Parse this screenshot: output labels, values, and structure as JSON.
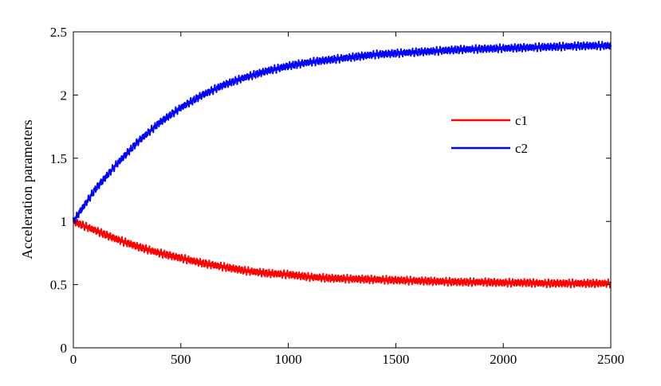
{
  "chart_data": {
    "type": "line",
    "ylabel": "Acceleration parameters",
    "xlim": [
      0,
      2500
    ],
    "ylim": [
      0,
      2.5
    ],
    "xticks": [
      0,
      500,
      1000,
      1500,
      2000,
      2500
    ],
    "yticks": [
      0,
      0.5,
      1,
      1.5,
      2,
      2.5
    ],
    "xtick_labels": [
      "0",
      "500",
      "1000",
      "1500",
      "2000",
      "2500"
    ],
    "ytick_labels": [
      "0",
      "0.5",
      "1",
      "1.5",
      "2",
      "2.5"
    ],
    "grid": false,
    "legend_position": "right-center",
    "x": [
      0,
      100,
      200,
      300,
      400,
      500,
      600,
      700,
      800,
      900,
      1000,
      1100,
      1200,
      1300,
      1400,
      1500,
      1600,
      1700,
      1800,
      1900,
      2000,
      2100,
      2200,
      2300,
      2400,
      2500
    ],
    "series": [
      {
        "name": "c1",
        "color": "#ff0000",
        "values": [
          1.0,
          0.93,
          0.86,
          0.8,
          0.75,
          0.71,
          0.67,
          0.64,
          0.61,
          0.59,
          0.58,
          0.56,
          0.55,
          0.545,
          0.54,
          0.535,
          0.53,
          0.525,
          0.52,
          0.52,
          0.515,
          0.515,
          0.51,
          0.51,
          0.51,
          0.51
        ]
      },
      {
        "name": "c2",
        "color": "#0000ff",
        "values": [
          1.0,
          1.25,
          1.45,
          1.63,
          1.78,
          1.9,
          2.0,
          2.08,
          2.14,
          2.19,
          2.23,
          2.26,
          2.28,
          2.3,
          2.32,
          2.33,
          2.34,
          2.35,
          2.36,
          2.365,
          2.37,
          2.375,
          2.38,
          2.385,
          2.39,
          2.39
        ]
      }
    ]
  }
}
